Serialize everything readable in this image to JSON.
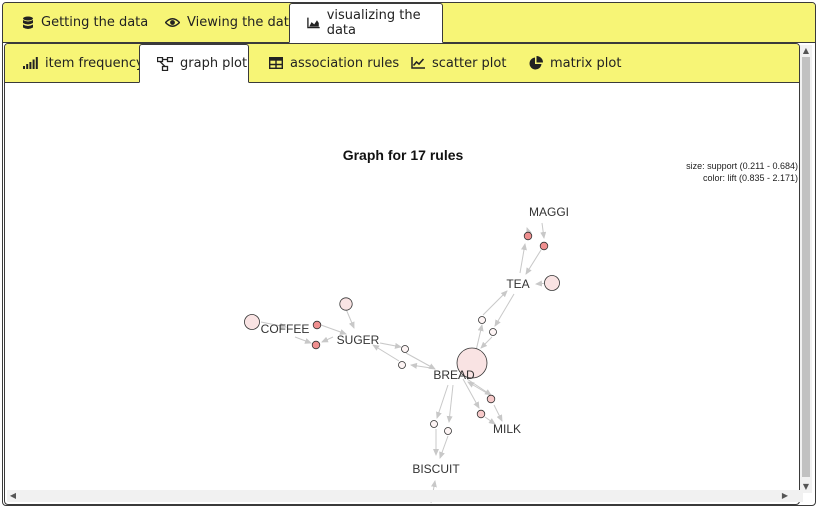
{
  "top_tabs": [
    {
      "label": "Getting the data",
      "icon": "database-icon"
    },
    {
      "label": "Viewing the data",
      "icon": "eye-icon"
    },
    {
      "label": "visualizing the data",
      "icon": "area-chart-icon",
      "active": true
    }
  ],
  "sub_tabs": [
    {
      "label": "item frequency",
      "icon": "signal-bars-icon"
    },
    {
      "label": "graph plot",
      "icon": "graph-nodes-icon",
      "active": true
    },
    {
      "label": "association rules",
      "icon": "table-icon"
    },
    {
      "label": "scatter plot",
      "icon": "line-chart-icon"
    },
    {
      "label": "matrix plot",
      "icon": "pie-chart-icon"
    }
  ],
  "plot": {
    "title": "Graph for 17 rules",
    "legend_size": "size: support (0.211 - 0.684)",
    "legend_color": "color: lift (0.835 - 2.171)",
    "items": [
      "MAGGI",
      "TEA",
      "COFFEE",
      "SUGER",
      "BREAD",
      "MILK",
      "BISCUIT"
    ]
  },
  "colors": {
    "tab_bar": "#f7f576",
    "border": "#3a3a3a",
    "edge": "#c8c8c8",
    "node_stroke": "#333333",
    "node_fill_low": "#f9e3e3",
    "node_fill_high": "#ef8f8f"
  }
}
